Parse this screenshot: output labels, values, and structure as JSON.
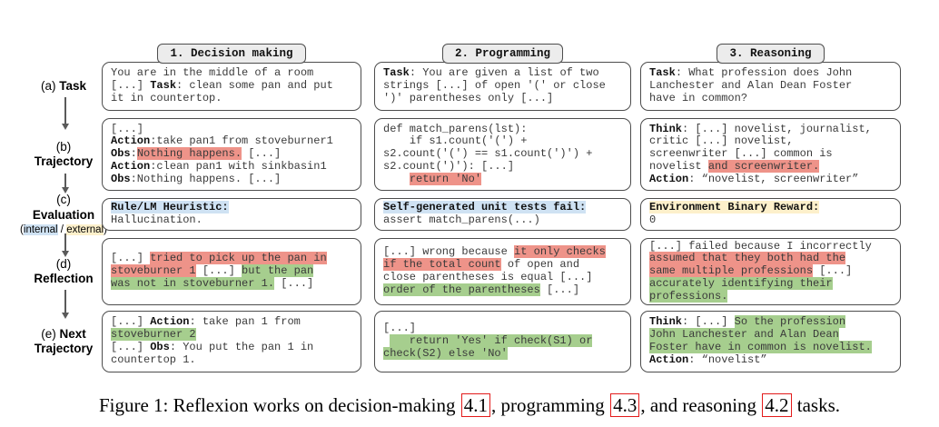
{
  "colors": {
    "red": "#ee9389",
    "green": "#a6ce8e",
    "blue": "#cfe2f3",
    "yellow": "#fdf0cb",
    "ref": "#e31b1b"
  },
  "rail": {
    "task": {
      "segs": [
        {
          "t": "(a) "
        },
        {
          "t": "Task",
          "b": true
        }
      ]
    },
    "trajectory": {
      "segs": [
        {
          "t": "(b)\n"
        },
        {
          "t": "Trajectory",
          "b": true
        }
      ]
    },
    "evaluation": {
      "segs": [
        {
          "t": "(c)\n"
        },
        {
          "t": "Evaluation",
          "b": true
        }
      ],
      "sub": [
        {
          "t": "("
        },
        {
          "t": "internal",
          "h": "blue"
        },
        {
          "t": " / "
        },
        {
          "t": "external",
          "h": "yellow"
        },
        {
          "t": ")"
        }
      ]
    },
    "reflection": {
      "segs": [
        {
          "t": "(d)\n"
        },
        {
          "t": "Reflection",
          "b": true
        }
      ]
    },
    "next": {
      "segs": [
        {
          "t": "(e) "
        },
        {
          "t": "Next",
          "b": true
        },
        {
          "t": "\n"
        },
        {
          "t": "Trajectory",
          "b": true
        }
      ]
    }
  },
  "columns": [
    {
      "header": "1. Decision making",
      "boxes": {
        "task": [
          {
            "t": "You are in the middle of a room\n[...] "
          },
          {
            "t": "Task",
            "b": true
          },
          {
            "t": ": clean some pan and put\nit in countertop."
          }
        ],
        "trajectory": [
          {
            "t": "[...]\n"
          },
          {
            "t": "Action",
            "b": true
          },
          {
            "t": ":take pan1 from stoveburner1\n"
          },
          {
            "t": "Obs",
            "b": true
          },
          {
            "t": ":"
          },
          {
            "t": "Nothing happens.",
            "h": "red"
          },
          {
            "t": " [...]\n"
          },
          {
            "t": "Action",
            "b": true
          },
          {
            "t": ":clean pan1 with sinkbasin1\n"
          },
          {
            "t": "Obs",
            "b": true
          },
          {
            "t": ":Nothing happens. [...]"
          }
        ],
        "evaluation": [
          {
            "t": "Rule/LM Heuristic:",
            "b": true,
            "h": "blue"
          },
          {
            "t": "\nHallucination."
          }
        ],
        "reflection": [
          {
            "t": "[...] "
          },
          {
            "t": "tried to pick up the pan in\nstoveburner 1",
            "h": "red"
          },
          {
            "t": " [...] "
          },
          {
            "t": "but the pan\nwas not in stoveburner 1.",
            "h": "green"
          },
          {
            "t": " [...]"
          }
        ],
        "next": [
          {
            "t": "[...] "
          },
          {
            "t": "Action",
            "b": true
          },
          {
            "t": ": take pan 1 from\n"
          },
          {
            "t": "stoveburner 2",
            "h": "green"
          },
          {
            "t": "\n[...] "
          },
          {
            "t": "Obs",
            "b": true
          },
          {
            "t": ": You put the pan 1 in\ncountertop 1."
          }
        ]
      }
    },
    {
      "header": "2. Programming",
      "boxes": {
        "task": [
          {
            "t": "Task",
            "b": true
          },
          {
            "t": ": You are given a list of two\nstrings [...] of open '(' or close\n')' parentheses only [...]"
          }
        ],
        "trajectory": [
          {
            "t": "def match_parens(lst):\n    if s1.count('(') +\ns2.count('(') == s1.count(')') +\ns2.count(')'): [...]\n    "
          },
          {
            "t": "return 'No'",
            "h": "red"
          }
        ],
        "evaluation": [
          {
            "t": "Self-generated unit tests fail:",
            "b": true,
            "h": "blue"
          },
          {
            "t": "\nassert match_parens(...)"
          }
        ],
        "reflection": [
          {
            "t": "[...] wrong because "
          },
          {
            "t": "it only checks\nif the total count",
            "h": "red"
          },
          {
            "t": " of open and\nclose parentheses is equal [...]\n"
          },
          {
            "t": "order of the parentheses",
            "h": "green"
          },
          {
            "t": " [...]"
          }
        ],
        "next": [
          {
            "t": "[...]\n "
          },
          {
            "t": "   return 'Yes' if check(S1) or\ncheck(S2) else 'No'",
            "h": "green"
          }
        ]
      }
    },
    {
      "header": "3. Reasoning",
      "boxes": {
        "task": [
          {
            "t": "Task",
            "b": true
          },
          {
            "t": ": What profession does John\nLanchester and Alan Dean Foster\nhave in common?"
          }
        ],
        "trajectory": [
          {
            "t": "Think",
            "b": true
          },
          {
            "t": ": [...] novelist, journalist,\ncritic [...] novelist,\nscreenwriter [...] common is\nnovelist "
          },
          {
            "t": "and screenwriter.",
            "h": "red"
          },
          {
            "t": "\n"
          },
          {
            "t": "Action",
            "b": true
          },
          {
            "t": ": “novelist, screenwriter”"
          }
        ],
        "evaluation": [
          {
            "t": "Environment Binary Reward:",
            "b": true,
            "h": "yellow"
          },
          {
            "t": "\n0"
          }
        ],
        "reflection": [
          {
            "t": "[...] failed because I incorrectly\n"
          },
          {
            "t": "assumed that they both had the\nsame multiple professions",
            "h": "red"
          },
          {
            "t": " [...]\n"
          },
          {
            "t": "accurately identifying their\nprofessions.",
            "h": "green"
          }
        ],
        "next": [
          {
            "t": "Think",
            "b": true
          },
          {
            "t": ": [...] "
          },
          {
            "t": "So the profession\nJohn Lanchester and Alan Dean\nFoster have in common is novelist.",
            "h": "green"
          },
          {
            "t": "\n"
          },
          {
            "t": "Action",
            "b": true
          },
          {
            "t": ": “novelist”"
          }
        ]
      }
    }
  ],
  "caption": {
    "parts": [
      {
        "t": "Figure 1: Reflexion works on decision-making "
      },
      {
        "t": "4.1",
        "ref": true
      },
      {
        "t": ", programming "
      },
      {
        "t": "4.3",
        "ref": true
      },
      {
        "t": ", and reasoning "
      },
      {
        "t": "4.2",
        "ref": true
      },
      {
        "t": " tasks."
      }
    ]
  }
}
